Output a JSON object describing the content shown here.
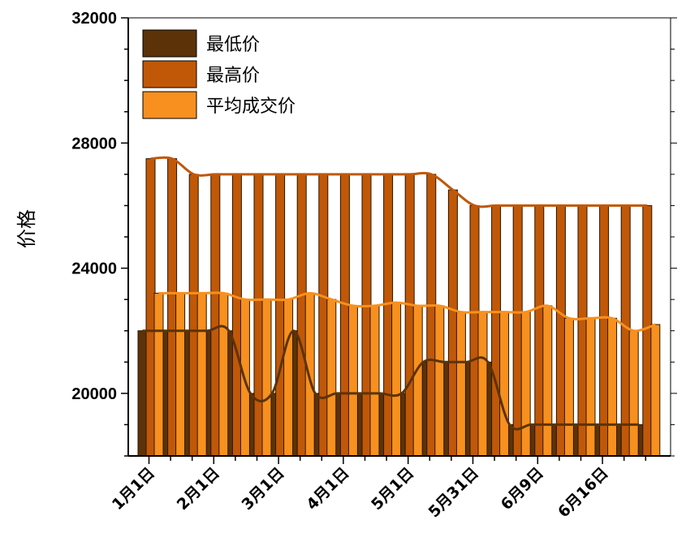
{
  "chart_data": {
    "type": "bar",
    "ylabel": "价格",
    "xlabel": "",
    "ylim": [
      18000,
      32000
    ],
    "yticks": [
      20000,
      24000,
      28000,
      32000
    ],
    "ytick_labels": [
      "20000",
      "24000",
      "28000",
      "32000"
    ],
    "x_tick_labels": [
      "1月1日",
      "2月1日",
      "3月1日",
      "4月1日",
      "5月1日",
      "5月31日",
      "6月9日",
      "6月16日"
    ],
    "x_tick_positions": [
      0,
      3,
      6,
      9,
      12,
      15,
      18,
      21
    ],
    "bar_count": 24,
    "legend_position": "top-left",
    "series": [
      {
        "name": "最低价",
        "color": "#5c3308",
        "values": [
          22000,
          22000,
          22000,
          22000,
          22000,
          20000,
          20000,
          22000,
          20000,
          20000,
          20000,
          20000,
          20000,
          21000,
          21000,
          21000,
          21000,
          19000,
          19000,
          19000,
          19000,
          19000,
          19000,
          19000
        ]
      },
      {
        "name": "最高价",
        "color": "#c05808",
        "values": [
          27500,
          27500,
          27000,
          27000,
          27000,
          27000,
          27000,
          27000,
          27000,
          27000,
          27000,
          27000,
          27000,
          27000,
          26500,
          26000,
          26000,
          26000,
          26000,
          26000,
          26000,
          26000,
          26000,
          26000
        ]
      },
      {
        "name": "平均成交价",
        "color": "#f7901e",
        "values": [
          23200,
          23200,
          23200,
          23200,
          23000,
          23000,
          23000,
          23200,
          23000,
          22800,
          22800,
          22900,
          22800,
          22800,
          22600,
          22600,
          22600,
          22600,
          22800,
          22400,
          22400,
          22400,
          22000,
          22200
        ]
      }
    ]
  }
}
